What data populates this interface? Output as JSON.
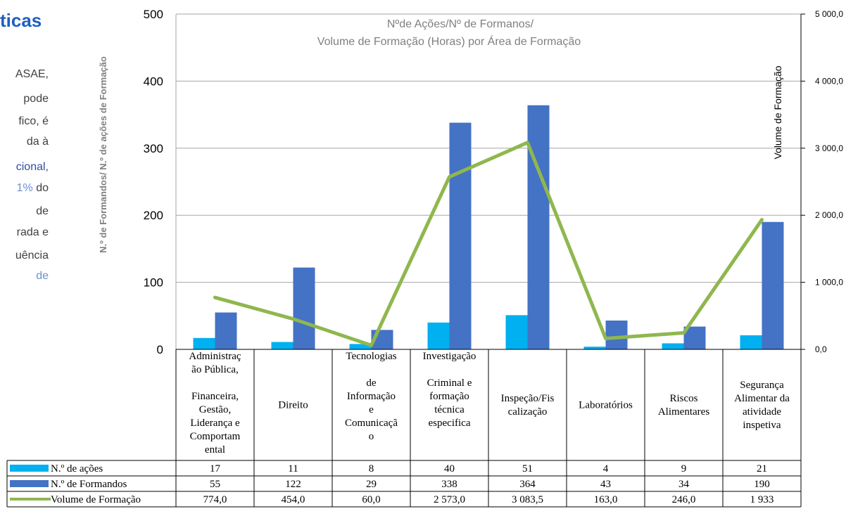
{
  "left_text": {
    "heading": "ticas",
    "lines": [
      {
        "text": "ASAE,",
        "color": "#404040"
      },
      {
        "text": "pode",
        "color": "#404040"
      },
      {
        "text": "fico,  é",
        "color": "#404040"
      },
      {
        "text": "da     à",
        "color": "#404040"
      },
      {
        "text": "cional,",
        "color": "#2e4e9e",
        "tail": ""
      },
      {
        "text": "1%",
        "color": "#6a8fd6",
        "tail": " do"
      },
      {
        "text": "de",
        "color": "#404040"
      },
      {
        "text": "rada e",
        "color": "#404040"
      },
      {
        "text": "uência",
        "color": "#404040"
      },
      {
        "text": "de",
        "color": "#6a8fd6"
      }
    ]
  },
  "colors": {
    "acoes": "#00b0f0",
    "formandos": "#4472c4",
    "volume": "#8fb74e",
    "heading": "#1f5fbf",
    "axis_text": "#000000",
    "title_text": "#808080",
    "grid": "#a6a6a6"
  },
  "chart_data": {
    "type": "bar",
    "title_line1": "Nºde Ações/Nº de Formanos/",
    "title_line2": "Volume de Formação (Horas) por Área de Formação",
    "ylabel_left": "N.º de Formandos/ N.º de ações de Formação",
    "ylabel_right": "Volume de Formação",
    "ylim_left": [
      0,
      500
    ],
    "ylim_right": [
      0,
      5000
    ],
    "left_ticks": [
      "0",
      "100",
      "200",
      "300",
      "400",
      "500"
    ],
    "right_ticks": [
      "0,0",
      "1 000,0",
      "2 000,0",
      "3 000,0",
      "4 000,0",
      "5 000,0"
    ],
    "categories": [
      [
        "Administraç",
        "ão Pública,",
        "",
        "Financeira,",
        "Gestão,",
        "Liderança e",
        "Comportam",
        "ental"
      ],
      [
        "Direito"
      ],
      [
        "Tecnologias",
        "",
        "de",
        "Informação",
        "e",
        "Comunicaçã",
        "o"
      ],
      [
        "Investigação",
        "",
        "Criminal e",
        "formação",
        "técnica",
        "especifica"
      ],
      [
        "Inspeção/Fis",
        "calização"
      ],
      [
        "Laboratórios"
      ],
      [
        "Riscos",
        "Alimentares"
      ],
      [
        "Segurança",
        "Alimentar da",
        "atividade",
        "inspetiva"
      ]
    ],
    "series": [
      {
        "name": "N.º de ações",
        "kind": "bar",
        "axis": "left",
        "values": [
          17,
          11,
          8,
          40,
          51,
          4,
          9,
          21
        ],
        "labels": [
          "17",
          "11",
          "8",
          "40",
          "51",
          "4",
          "9",
          "21"
        ]
      },
      {
        "name": "N.º de Formandos",
        "kind": "bar",
        "axis": "left",
        "values": [
          55,
          122,
          29,
          338,
          364,
          43,
          34,
          190
        ],
        "labels": [
          "55",
          "122",
          "29",
          "338",
          "364",
          "43",
          "34",
          "190"
        ]
      },
      {
        "name": "Volume de Formação",
        "kind": "line",
        "axis": "right",
        "values": [
          774.0,
          454.0,
          60.0,
          2573.0,
          3083.5,
          163.0,
          246.0,
          1933
        ],
        "labels": [
          "774,0",
          "454,0",
          "60,0",
          "2 573,0",
          "3 083,5",
          "163,0",
          "246,0",
          "1 933"
        ]
      }
    ],
    "grid": true,
    "legend": "data-table"
  }
}
